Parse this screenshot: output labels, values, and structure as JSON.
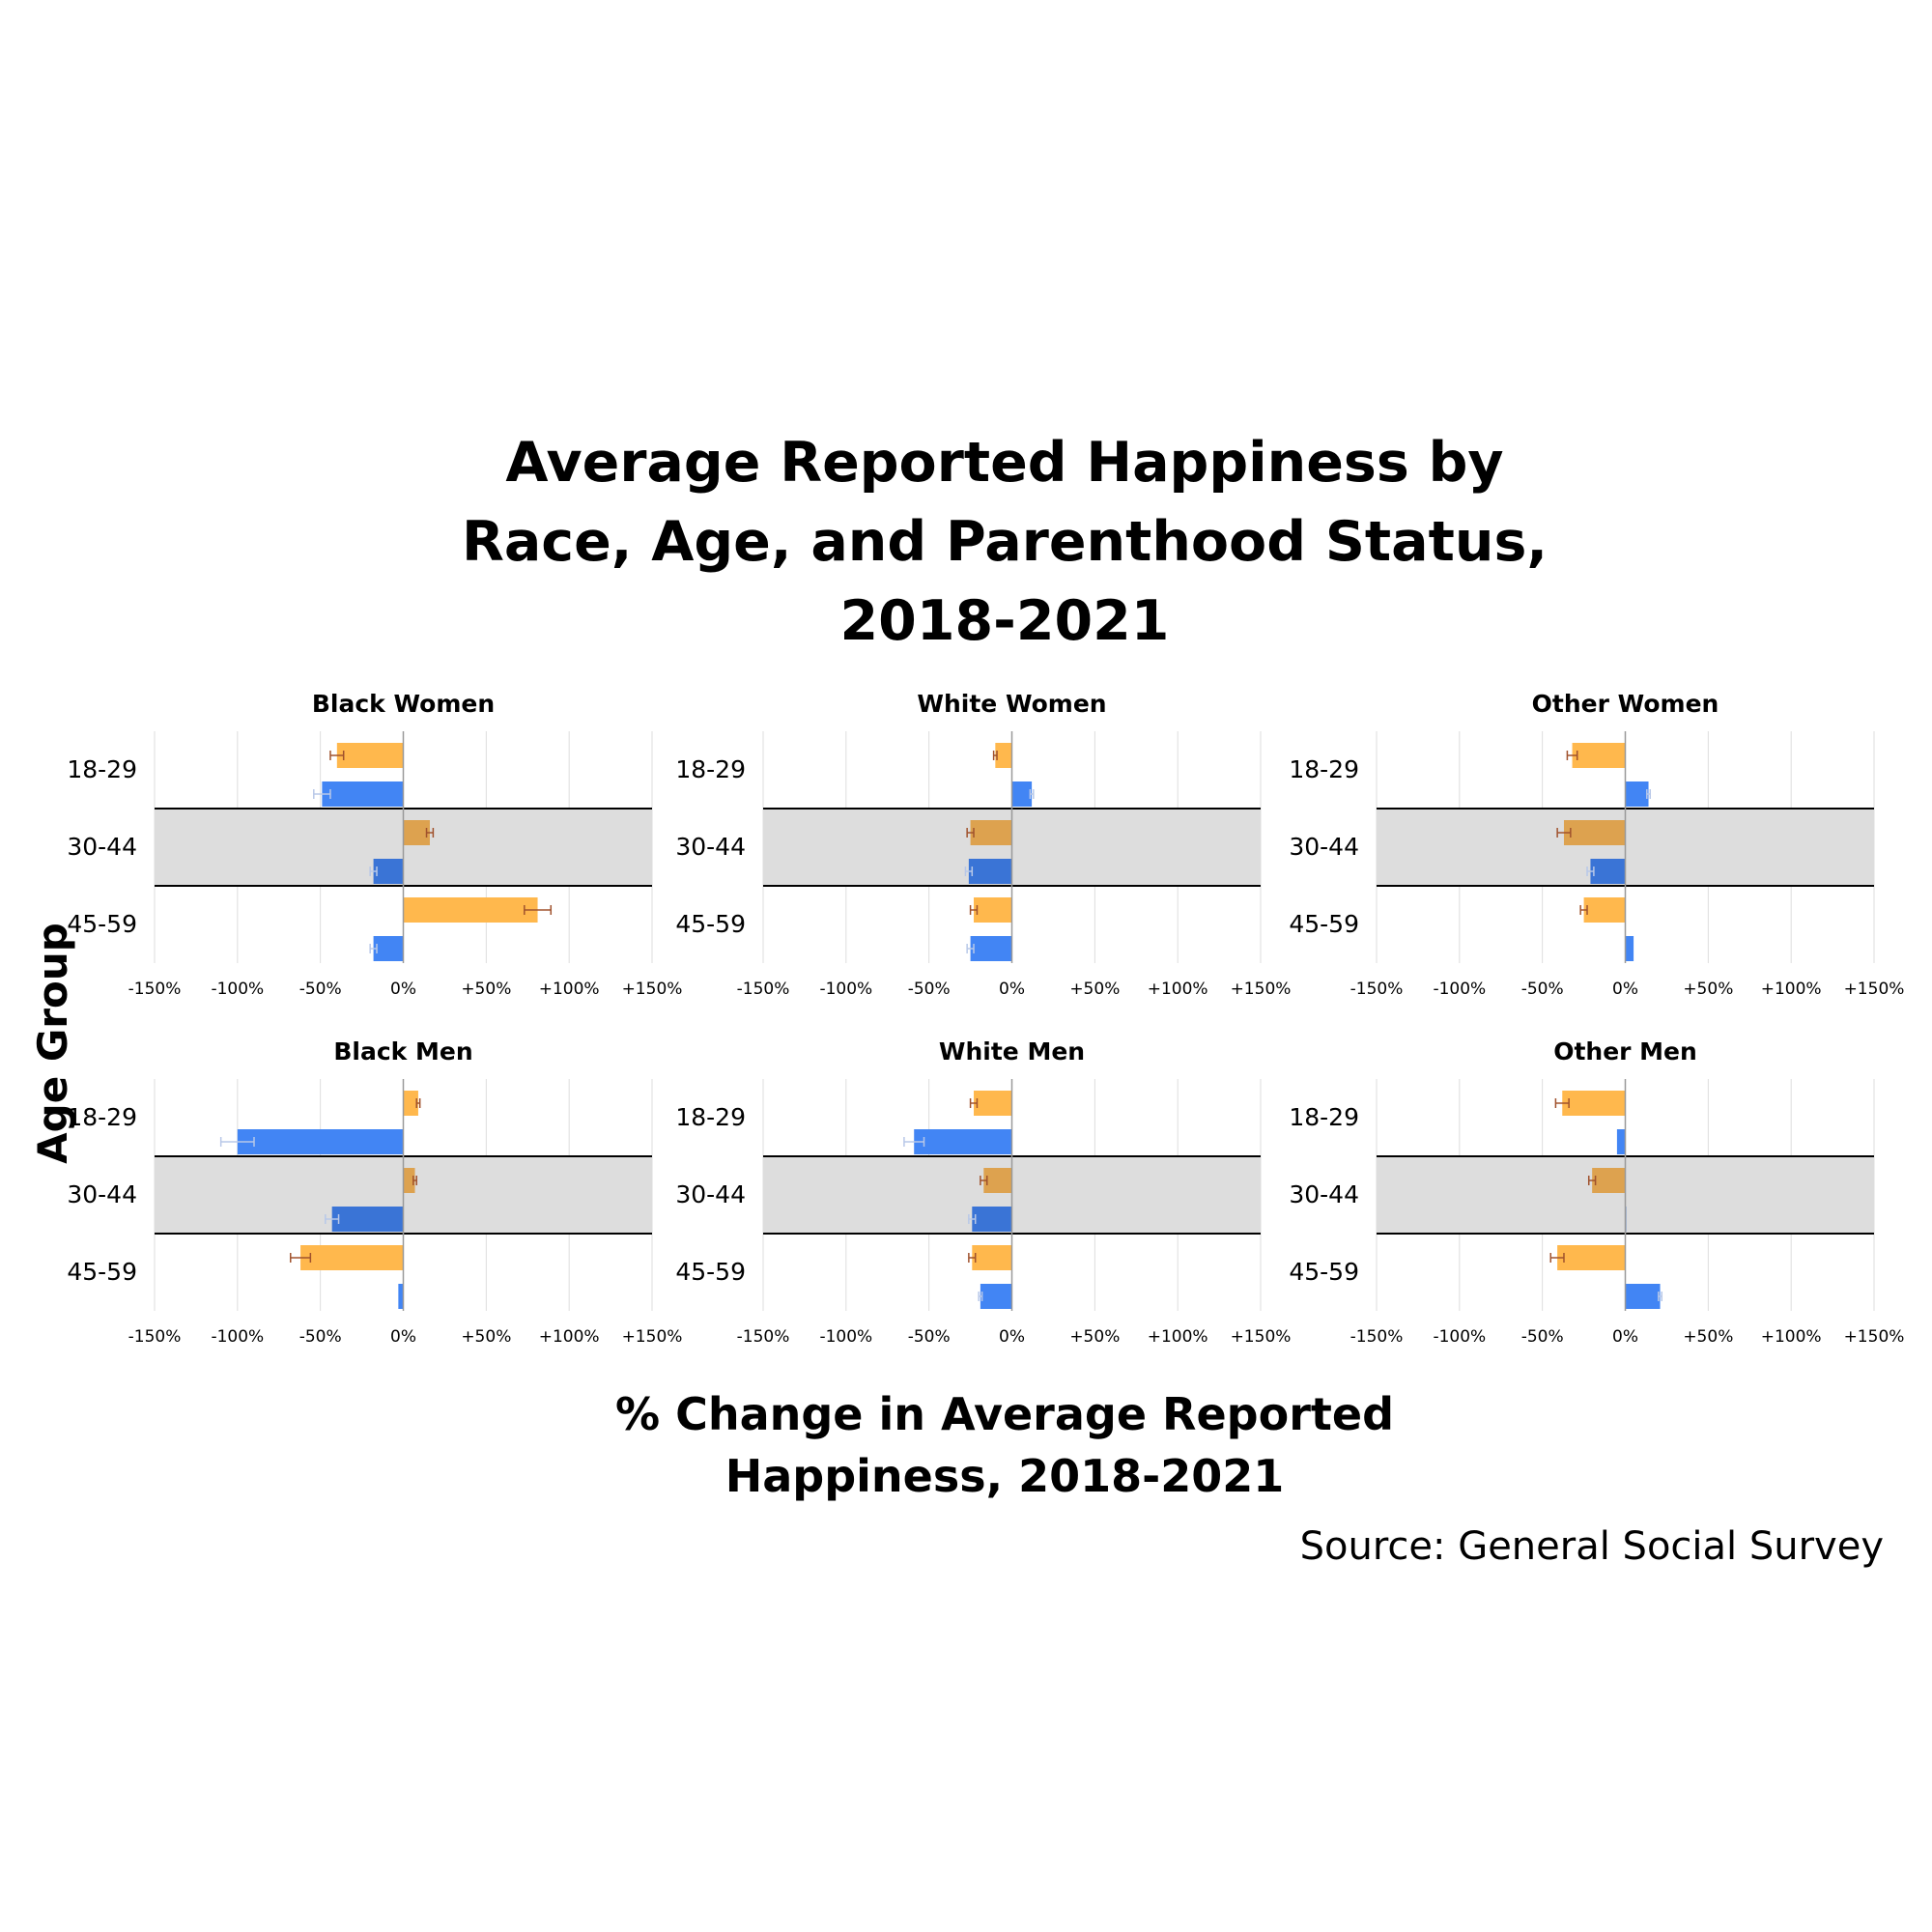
{
  "title_lines": [
    "Average Reported Happiness by",
    "Race, Age, and Parenthood Status,",
    "2018-2021"
  ],
  "y_axis_title": "Age Group",
  "x_axis_title_lines": [
    "% Change in Average Reported",
    "Happiness, 2018-2021"
  ],
  "source": "Source: General Social Survey",
  "colors": {
    "orange": "#FFB84D",
    "orange_shaded": "#DDA24F",
    "blue": "#4285F4",
    "blue_shaded": "#3A74D6",
    "band": "#DDDDDD",
    "grid": "#DDDDDD",
    "orange_error": "#A0522D",
    "blue_error": "#B8C8E8"
  },
  "chart_data": [
    {
      "type": "bar",
      "title": "Black Women",
      "categories": [
        "18-29",
        "30-44",
        "45-59"
      ],
      "xlim": [
        -150,
        150
      ],
      "ticks": [
        "-150%",
        "-100%",
        "-50%",
        "0%",
        "+50%",
        "+100%",
        "+150%"
      ],
      "bars": [
        {
          "orange": -40,
          "orange_err": 4,
          "blue": -49,
          "blue_err": 5
        },
        {
          "orange": 16,
          "orange_err": 2,
          "blue": -18,
          "blue_err": 2
        },
        {
          "orange": 81,
          "orange_err": 8,
          "blue": -18,
          "blue_err": 2
        }
      ]
    },
    {
      "type": "bar",
      "title": "White Women",
      "categories": [
        "18-29",
        "30-44",
        "45-59"
      ],
      "xlim": [
        -150,
        150
      ],
      "ticks": [
        "-150%",
        "-100%",
        "-50%",
        "0%",
        "+50%",
        "+100%",
        "+150%"
      ],
      "bars": [
        {
          "orange": -10,
          "orange_err": 1,
          "blue": 12,
          "blue_err": 1
        },
        {
          "orange": -25,
          "orange_err": 2,
          "blue": -26,
          "blue_err": 2
        },
        {
          "orange": -23,
          "orange_err": 2,
          "blue": -25,
          "blue_err": 2
        }
      ]
    },
    {
      "type": "bar",
      "title": "Other Women",
      "categories": [
        "18-29",
        "30-44",
        "45-59"
      ],
      "xlim": [
        -150,
        150
      ],
      "ticks": [
        "-150%",
        "-100%",
        "-50%",
        "0%",
        "+50%",
        "+100%",
        "+150%"
      ],
      "bars": [
        {
          "orange": -32,
          "orange_err": 3,
          "blue": 14,
          "blue_err": 1
        },
        {
          "orange": -37,
          "orange_err": 4,
          "blue": -21,
          "blue_err": 2
        },
        {
          "orange": -25,
          "orange_err": 2,
          "blue": 5,
          "blue_err": 0
        }
      ]
    },
    {
      "type": "bar",
      "title": "Black Men",
      "categories": [
        "18-29",
        "30-44",
        "45-59"
      ],
      "xlim": [
        -150,
        150
      ],
      "ticks": [
        "-150%",
        "-100%",
        "-50%",
        "0%",
        "+50%",
        "+100%",
        "+150%"
      ],
      "bars": [
        {
          "orange": 9,
          "orange_err": 1,
          "blue": -100,
          "blue_err": 10
        },
        {
          "orange": 7,
          "orange_err": 1,
          "blue": -43,
          "blue_err": 4
        },
        {
          "orange": -62,
          "orange_err": 6,
          "blue": -3,
          "blue_err": 0
        }
      ]
    },
    {
      "type": "bar",
      "title": "White Men",
      "categories": [
        "18-29",
        "30-44",
        "45-59"
      ],
      "xlim": [
        -150,
        150
      ],
      "ticks": [
        "-150%",
        "-100%",
        "-50%",
        "0%",
        "+50%",
        "+100%",
        "+150%"
      ],
      "bars": [
        {
          "orange": -23,
          "orange_err": 2,
          "blue": -59,
          "blue_err": 6
        },
        {
          "orange": -17,
          "orange_err": 2,
          "blue": -24,
          "blue_err": 2
        },
        {
          "orange": -24,
          "orange_err": 2,
          "blue": -19,
          "blue_err": 1
        }
      ]
    },
    {
      "type": "bar",
      "title": "Other Men",
      "categories": [
        "18-29",
        "30-44",
        "45-59"
      ],
      "xlim": [
        -150,
        150
      ],
      "ticks": [
        "-150%",
        "-100%",
        "-50%",
        "0%",
        "+50%",
        "+100%",
        "+150%"
      ],
      "bars": [
        {
          "orange": -38,
          "orange_err": 4,
          "blue": -5,
          "blue_err": 0
        },
        {
          "orange": -20,
          "orange_err": 2,
          "blue": 0,
          "blue_err": 0
        },
        {
          "orange": -41,
          "orange_err": 4,
          "blue": 21,
          "blue_err": 1
        }
      ]
    }
  ]
}
